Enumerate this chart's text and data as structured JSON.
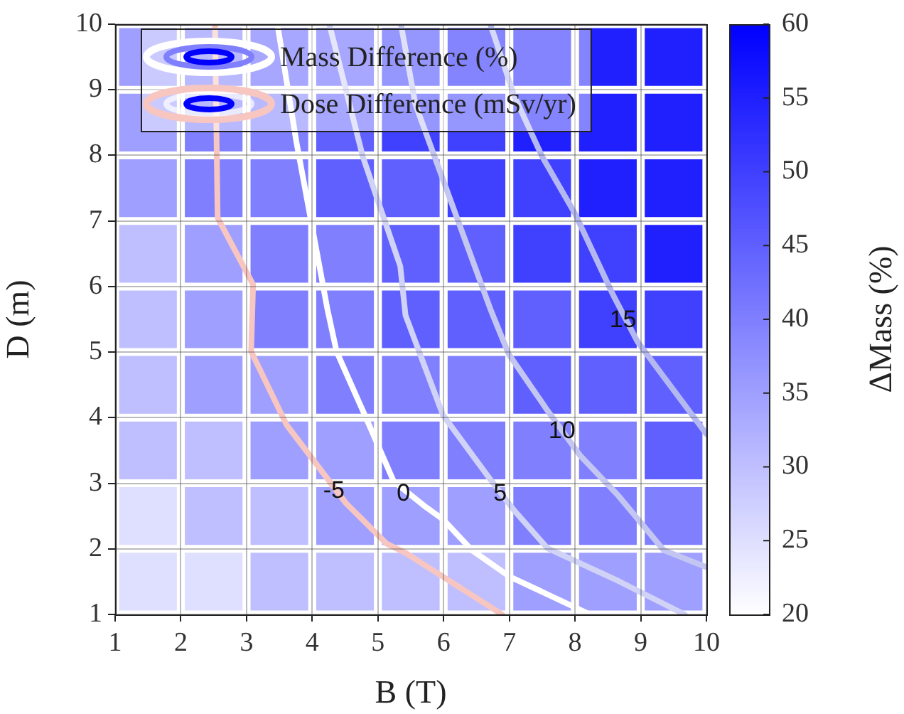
{
  "chart_data": {
    "type": "scatter",
    "xlabel": "B (T)",
    "ylabel": "D (m)",
    "clabel": "ΔMass (%)",
    "xlim": [
      1,
      10
    ],
    "ylim": [
      1,
      10
    ],
    "xticks": [
      1,
      2,
      3,
      4,
      5,
      6,
      7,
      8,
      9,
      10
    ],
    "yticks": [
      1,
      2,
      3,
      4,
      5,
      6,
      7,
      8,
      9,
      10
    ],
    "clim": [
      20,
      60
    ],
    "cticks": [
      20,
      25,
      30,
      35,
      40,
      45,
      50,
      55,
      60
    ],
    "grid": true,
    "legend": "top left",
    "series": [
      {
        "name": "Mass Difference (%)",
        "marker": "square",
        "x": [
          1.5,
          2.5,
          3.5,
          4.5,
          5.5,
          6.5,
          7.5,
          8.5,
          9.5,
          1.5,
          2.5,
          3.5,
          4.5,
          5.5,
          6.5,
          7.5,
          8.5,
          9.5,
          1.5,
          2.5,
          3.5,
          4.5,
          5.5,
          6.5,
          7.5,
          8.5,
          9.5,
          1.5,
          2.5,
          3.5,
          4.5,
          5.5,
          6.5,
          7.5,
          8.5,
          9.5,
          1.5,
          2.5,
          3.5,
          4.5,
          5.5,
          6.5,
          7.5,
          8.5,
          9.5,
          1.5,
          2.5,
          3.5,
          4.5,
          5.5,
          6.5,
          7.5,
          8.5,
          9.5,
          1.5,
          2.5,
          3.5,
          4.5,
          5.5,
          6.5,
          7.5,
          8.5,
          9.5,
          1.5,
          2.5,
          3.5,
          4.5,
          5.5,
          6.5,
          7.5,
          8.5,
          9.5,
          1.5,
          2.5,
          3.5,
          4.5,
          5.5,
          6.5,
          7.5,
          8.5,
          9.5
        ],
        "values": [
          9.5,
          9.5,
          9.5,
          9.5,
          9.5,
          9.5,
          9.5,
          9.5,
          9.5,
          8.5,
          8.5,
          8.5,
          8.5,
          8.5,
          8.5,
          8.5,
          8.5,
          8.5,
          7.5,
          7.5,
          7.5,
          7.5,
          7.5,
          7.5,
          7.5,
          7.5,
          7.5,
          6.5,
          6.5,
          6.5,
          6.5,
          6.5,
          6.5,
          6.5,
          6.5,
          6.5,
          5.5,
          5.5,
          5.5,
          5.5,
          5.5,
          5.5,
          5.5,
          5.5,
          5.5,
          4.5,
          4.5,
          4.5,
          4.5,
          4.5,
          4.5,
          4.5,
          4.5,
          4.5,
          3.5,
          3.5,
          3.5,
          3.5,
          3.5,
          3.5,
          3.5,
          3.5,
          3.5,
          2.5,
          2.5,
          2.5,
          2.5,
          2.5,
          2.5,
          2.5,
          2.5,
          2.5,
          1.5,
          1.5,
          1.5,
          1.5,
          1.5,
          1.5,
          1.5,
          1.5,
          1.5
        ],
        "colors": [
          "#9f9fff",
          "#8080ff",
          "#6060ff",
          "#6060ff",
          "#4040ff",
          "#2020ff",
          "#2020ff",
          "#2020ff",
          "#2020ff",
          "#9f9fff",
          "#8080ff",
          "#8080ff",
          "#6060ff",
          "#4040ff",
          "#4040ff",
          "#2020ff",
          "#2020ff",
          "#2020ff",
          "#9f9fff",
          "#8080ff",
          "#8080ff",
          "#6060ff",
          "#6060ff",
          "#4040ff",
          "#4040ff",
          "#2020ff",
          "#2020ff",
          "#bfbfff",
          "#9f9fff",
          "#8080ff",
          "#8080ff",
          "#6060ff",
          "#6060ff",
          "#4040ff",
          "#4040ff",
          "#2020ff",
          "#bfbfff",
          "#9f9fff",
          "#8080ff",
          "#8080ff",
          "#6060ff",
          "#6060ff",
          "#6060ff",
          "#4040ff",
          "#4040ff",
          "#bfbfff",
          "#9f9fff",
          "#9f9fff",
          "#8080ff",
          "#8080ff",
          "#8080ff",
          "#6060ff",
          "#6060ff",
          "#6060ff",
          "#bfbfff",
          "#bfbfff",
          "#9f9fff",
          "#9f9fff",
          "#8080ff",
          "#8080ff",
          "#8080ff",
          "#8080ff",
          "#6060ff",
          "#dfdfff",
          "#bfbfff",
          "#bfbfff",
          "#9f9fff",
          "#9f9fff",
          "#9f9fff",
          "#8080ff",
          "#8080ff",
          "#8080ff",
          "#dfdfff",
          "#dfdfff",
          "#bfbfff",
          "#bfbfff",
          "#bfbfff",
          "#bfbfff",
          "#9f9fff",
          "#9f9fff",
          "#9f9fff"
        ],
        "cvalues": [
          35,
          40,
          45,
          45,
          50,
          55,
          55,
          55,
          55,
          35,
          40,
          40,
          45,
          50,
          50,
          55,
          55,
          55,
          35,
          40,
          40,
          45,
          45,
          50,
          50,
          55,
          55,
          30,
          35,
          40,
          40,
          45,
          45,
          50,
          50,
          55,
          30,
          35,
          40,
          40,
          45,
          45,
          45,
          50,
          50,
          30,
          35,
          35,
          40,
          40,
          40,
          45,
          45,
          45,
          30,
          30,
          35,
          35,
          40,
          40,
          40,
          40,
          45,
          25,
          30,
          30,
          35,
          35,
          35,
          40,
          40,
          40,
          25,
          25,
          30,
          30,
          30,
          30,
          35,
          35,
          35
        ]
      },
      {
        "type": "line",
        "name": "Dose Difference (mSv/yr)",
        "color": "#f8c6c0",
        "x": [
          2.52,
          2.56,
          3.1,
          3.07,
          3.61,
          4.05,
          4.51,
          5.13,
          5.42,
          6.89
        ],
        "values": [
          10,
          7.05,
          6.03,
          5.01,
          3.89,
          3.31,
          2.7,
          2.08,
          1.94,
          1
        ]
      },
      {
        "type": "line",
        "color": "#ffffff",
        "x": [
          3.47,
          3.76,
          4.23,
          4.37,
          4.8,
          5.24,
          5.7,
          5.99,
          6.43,
          7.0,
          8.23
        ],
        "values": [
          10,
          8.2,
          5.66,
          5.01,
          4.04,
          3.03,
          2.66,
          2.45,
          1.98,
          1.58,
          1
        ]
      },
      {
        "type": "line",
        "color": "#d0d2f6",
        "x": [
          4.26,
          4.77,
          5.34,
          5.42,
          5.99,
          6.71,
          7.07,
          7.58,
          8.66,
          9.67
        ],
        "values": [
          10,
          7.98,
          6.31,
          5.56,
          4.04,
          3.06,
          2.59,
          2.01,
          1.51,
          1
        ]
      },
      {
        "type": "line",
        "color": "#c4c6f2",
        "x": [
          5.35,
          5.57,
          6.71,
          6.99,
          7.58,
          8.08,
          8.66,
          9.35,
          10
        ],
        "values": [
          10,
          8.78,
          5.66,
          4.97,
          4.11,
          3.42,
          2.81,
          1.98,
          1.72
        ]
      },
      {
        "type": "line",
        "color": "#b4b8f0",
        "x": [
          6.71,
          7.07,
          7.5,
          8.0,
          8.59,
          8.95,
          10
        ],
        "values": [
          10,
          8.92,
          7.98,
          7.11,
          5.85,
          5.16,
          3.75
        ]
      }
    ],
    "annotations": [
      {
        "text": "-5",
        "x": 4.33,
        "y": 2.88
      },
      {
        "text": "0",
        "x": 5.39,
        "y": 2.84
      },
      {
        "text": "5",
        "x": 6.86,
        "y": 2.84
      },
      {
        "text": "10",
        "x": 7.8,
        "y": 3.79
      },
      {
        "text": "15",
        "x": 8.73,
        "y": 5.48
      }
    ]
  }
}
